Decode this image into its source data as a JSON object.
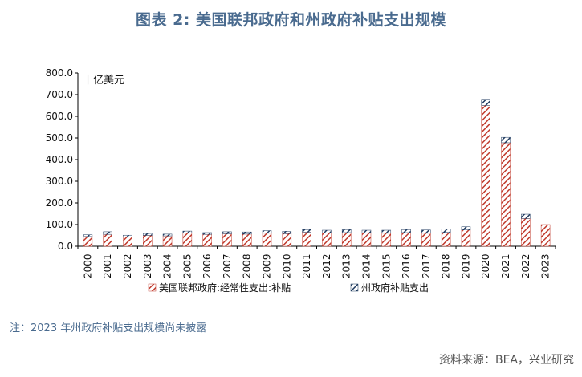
{
  "title": "图表 2:  美国联邦政府和州政府补贴支出规模",
  "note": "注：2023 年州政府补贴支出规模尚未披露",
  "source": "资料来源：BEA，兴业研究",
  "chart_data": {
    "type": "bar",
    "stacked": true,
    "unit_label": "十亿美元",
    "categories": [
      "2000",
      "2001",
      "2002",
      "2003",
      "2004",
      "2005",
      "2006",
      "2007",
      "2008",
      "2009",
      "2010",
      "2011",
      "2012",
      "2013",
      "2014",
      "2015",
      "2016",
      "2017",
      "2018",
      "2019",
      "2020",
      "2021",
      "2022",
      "2023"
    ],
    "series": [
      {
        "name": "美国联邦政府:经常性支出:补贴",
        "color": "#c0392b",
        "values": [
          45,
          55,
          43,
          50,
          48,
          62,
          55,
          57,
          56,
          60,
          58,
          65,
          62,
          63,
          62,
          60,
          63,
          60,
          64,
          75,
          650,
          478,
          128,
          100
        ]
      },
      {
        "name": "州政府补贴支出",
        "color": "#1f3a5f",
        "values": [
          8,
          12,
          8,
          9,
          8,
          8,
          8,
          10,
          10,
          12,
          11,
          12,
          12,
          14,
          12,
          14,
          14,
          15,
          16,
          15,
          25,
          25,
          20,
          null
        ]
      }
    ],
    "ylim": [
      0,
      800
    ],
    "yticks": [
      "0.0",
      "100.0",
      "200.0",
      "300.0",
      "400.0",
      "500.0",
      "600.0",
      "700.0",
      "800.0"
    ],
    "grid": false,
    "legend_position": "bottom"
  }
}
